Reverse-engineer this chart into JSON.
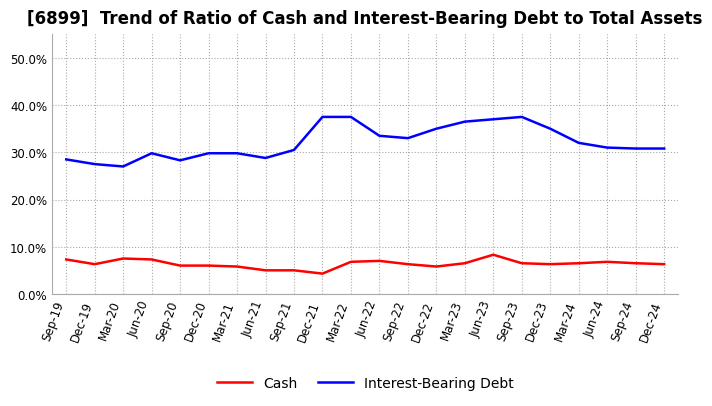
{
  "title": "[6899]  Trend of Ratio of Cash and Interest-Bearing Debt to Total Assets",
  "x_labels": [
    "Sep-19",
    "Dec-19",
    "Mar-20",
    "Jun-20",
    "Sep-20",
    "Dec-20",
    "Mar-21",
    "Jun-21",
    "Sep-21",
    "Dec-21",
    "Mar-22",
    "Jun-22",
    "Sep-22",
    "Dec-22",
    "Mar-23",
    "Jun-23",
    "Sep-23",
    "Dec-23",
    "Mar-24",
    "Jun-24",
    "Sep-24",
    "Dec-24"
  ],
  "cash": [
    0.073,
    0.063,
    0.075,
    0.073,
    0.06,
    0.06,
    0.058,
    0.05,
    0.05,
    0.043,
    0.068,
    0.07,
    0.063,
    0.058,
    0.065,
    0.083,
    0.065,
    0.063,
    0.065,
    0.068,
    0.065,
    0.063
  ],
  "debt": [
    0.285,
    0.275,
    0.27,
    0.298,
    0.283,
    0.298,
    0.298,
    0.288,
    0.305,
    0.375,
    0.375,
    0.335,
    0.33,
    0.35,
    0.365,
    0.37,
    0.375,
    0.35,
    0.32,
    0.31,
    0.308,
    0.308
  ],
  "cash_color": "#ff0000",
  "debt_color": "#0000ff",
  "bg_color": "#ffffff",
  "plot_bg_color": "#ffffff",
  "ylim": [
    0.0,
    0.55
  ],
  "yticks": [
    0.0,
    0.1,
    0.2,
    0.3,
    0.4,
    0.5
  ],
  "grid_color": "#aaaaaa",
  "legend_labels": [
    "Cash",
    "Interest-Bearing Debt"
  ],
  "title_fontsize": 12,
  "tick_fontsize": 8.5,
  "legend_fontsize": 10,
  "line_width": 1.8
}
